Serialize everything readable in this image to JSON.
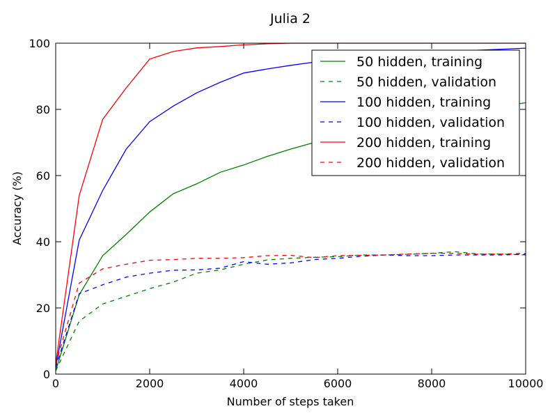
{
  "chart_data": {
    "type": "line",
    "title": "Julia 2",
    "xlabel": "Number of steps taken",
    "ylabel": "Accuracy (%)",
    "xlim": [
      0,
      10000
    ],
    "ylim": [
      0,
      100
    ],
    "xticks": [
      0,
      2000,
      4000,
      6000,
      8000,
      10000
    ],
    "yticks": [
      0,
      20,
      40,
      60,
      80,
      100
    ],
    "grid": false,
    "legend_position": "top-right",
    "series": [
      {
        "name": "50 hidden, training",
        "color": "#008000",
        "dash": "solid",
        "x": [
          0,
          500,
          1000,
          1500,
          2000,
          2500,
          3000,
          3500,
          4000,
          4500,
          5000,
          5500,
          6000,
          6500,
          7000,
          7500,
          8000,
          8500,
          9000,
          9500,
          10000
        ],
        "y": [
          1,
          24,
          35.8,
          42.2,
          49,
          54.5,
          57.5,
          61,
          63.2,
          65.8,
          68,
          70,
          72,
          73.8,
          75.2,
          76.5,
          77.8,
          79,
          80,
          81,
          82
        ]
      },
      {
        "name": "50 hidden, validation",
        "color": "#008000",
        "dash": "dashed",
        "x": [
          0,
          500,
          1000,
          1500,
          2000,
          2500,
          3000,
          3500,
          4000,
          4500,
          5000,
          5500,
          6000,
          6500,
          7000,
          7500,
          8000,
          8500,
          9000,
          9500,
          10000
        ],
        "y": [
          1,
          16,
          21.2,
          23.5,
          25.8,
          27.8,
          30.5,
          31.5,
          33.2,
          34.5,
          35,
          35.3,
          35.5,
          36,
          36,
          36.2,
          36.5,
          37,
          36.3,
          36.3,
          36
        ]
      },
      {
        "name": "100 hidden, training",
        "color": "#0000ff",
        "dash": "solid",
        "x": [
          0,
          500,
          1000,
          1500,
          2000,
          2500,
          3000,
          3500,
          4000,
          4500,
          5000,
          5500,
          6000,
          6500,
          7000,
          7500,
          8000,
          8500,
          9000,
          9500,
          10000
        ],
        "y": [
          2,
          40.5,
          55.5,
          68,
          76.3,
          81,
          85,
          88.2,
          91,
          92.2,
          93.3,
          94.3,
          95.2,
          95.8,
          96.3,
          96.8,
          97.2,
          97.6,
          97.9,
          98.2,
          98.5
        ]
      },
      {
        "name": "100 hidden, validation",
        "color": "#0000ff",
        "dash": "dashed",
        "x": [
          0,
          500,
          1000,
          1500,
          2000,
          2500,
          3000,
          3500,
          4000,
          4500,
          5000,
          5500,
          6000,
          6500,
          7000,
          7500,
          8000,
          8500,
          9000,
          9500,
          10000
        ],
        "y": [
          2,
          24.3,
          27,
          29.3,
          30.5,
          31.4,
          31.5,
          32,
          34,
          33.2,
          33.6,
          34.6,
          35,
          35.6,
          36,
          35.8,
          35.8,
          36,
          36,
          36,
          36.2
        ]
      },
      {
        "name": "200 hidden, training",
        "color": "#ff0000",
        "dash": "solid",
        "x": [
          0,
          500,
          1000,
          1500,
          2000,
          2500,
          3000,
          3500,
          4000,
          4500,
          5000,
          5500,
          6000,
          6500,
          7000,
          7500,
          8000,
          8500,
          9000,
          9500,
          10000
        ],
        "y": [
          3,
          54,
          77,
          86.5,
          95.2,
          97.5,
          98.6,
          99,
          99.5,
          99.8,
          100,
          100,
          100,
          100,
          100,
          100,
          100,
          100,
          100,
          100,
          100
        ]
      },
      {
        "name": "200 hidden, validation",
        "color": "#ff0000",
        "dash": "dashed",
        "x": [
          0,
          500,
          1000,
          1500,
          2000,
          2500,
          3000,
          3500,
          4000,
          4500,
          5000,
          5500,
          6000,
          6500,
          7000,
          7500,
          8000,
          8500,
          9000,
          9500,
          10000
        ],
        "y": [
          3,
          27.5,
          31.8,
          33.2,
          34.4,
          34.6,
          35,
          35,
          35.2,
          35.8,
          35.9,
          35.2,
          35.8,
          35.9,
          36,
          36.3,
          36.5,
          36.5,
          36.2,
          36.3,
          36.5
        ]
      }
    ]
  }
}
